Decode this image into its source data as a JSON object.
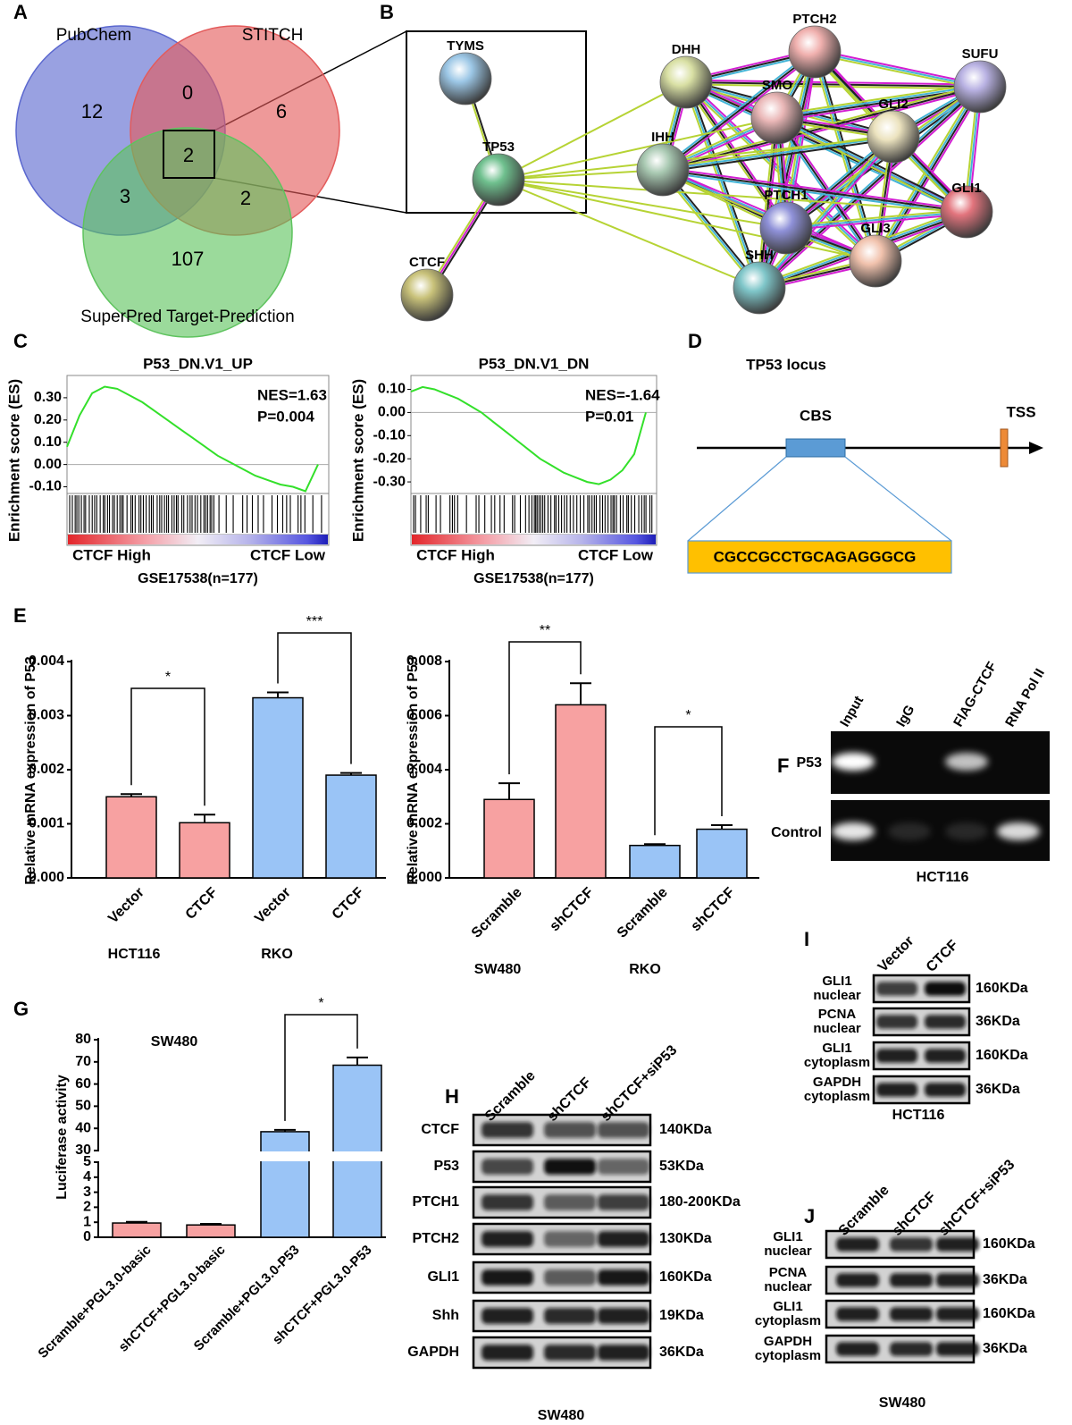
{
  "panel_labels": [
    "A",
    "B",
    "C",
    "D",
    "E",
    "F",
    "G",
    "H",
    "I",
    "J"
  ],
  "venn": {
    "sets": [
      "PubChem",
      "STITCH",
      "SuperPred Target-Prediction"
    ],
    "counts": [
      12,
      0,
      6,
      2,
      3,
      2,
      107
    ]
  },
  "network": {
    "nodes": [
      "TYMS",
      "TP53",
      "CTCF",
      "DHH",
      "PTCH2",
      "SUFU",
      "SMO",
      "GLI2",
      "IHH",
      "GLI1",
      "PTCH1",
      "GLI3",
      "SHH"
    ]
  },
  "gsea": [
    {
      "title": "P53_DN.V1_UP",
      "ylabel": "Enrichment score (ES)",
      "ylim": [
        -0.13,
        0.4
      ],
      "yticks": [
        {
          "value": 0.3,
          "label": "0.30"
        },
        {
          "value": 0.2,
          "label": "0.20"
        },
        {
          "value": 0.1,
          "label": "0.10"
        },
        {
          "value": 0,
          "label": "0.00"
        },
        {
          "value": -0.1,
          "label": "-0.10"
        }
      ],
      "es_curve": [
        0.08,
        0.22,
        0.32,
        0.35,
        0.34,
        0.31,
        0.28,
        0.24,
        0.2,
        0.16,
        0.12,
        0.08,
        0.04,
        0.01,
        -0.02,
        -0.05,
        -0.07,
        -0.09,
        -0.1,
        -0.12,
        0.0
      ],
      "color": "#33e02a",
      "nes": "NES=1.63",
      "p": "P=0.004",
      "x_labels": [
        "CTCF High",
        "CTCF Low"
      ],
      "dataset": "GSE17538(n=177)"
    },
    {
      "title": "P53_DN.V1_DN",
      "ylabel": "Enrichment score (ES)",
      "ylim": [
        -0.35,
        0.16
      ],
      "yticks": [
        {
          "value": 0.1,
          "label": "0.10"
        },
        {
          "value": 0,
          "label": "0.00"
        },
        {
          "value": -0.1,
          "label": "-0.10"
        },
        {
          "value": -0.2,
          "label": "-0.20"
        },
        {
          "value": -0.3,
          "label": "-0.30"
        }
      ],
      "es_curve": [
        0.09,
        0.11,
        0.1,
        0.08,
        0.06,
        0.03,
        0.0,
        -0.04,
        -0.08,
        -0.12,
        -0.16,
        -0.2,
        -0.23,
        -0.26,
        -0.28,
        -0.3,
        -0.31,
        -0.29,
        -0.25,
        -0.18,
        0.0
      ],
      "color": "#33e02a",
      "nes": "NES=-1.64",
      "p": "P=0.01",
      "x_labels": [
        "CTCF High",
        "CTCF Low"
      ],
      "dataset": "GSE17538(n=177)"
    }
  ],
  "locus": {
    "title": "TP53 locus",
    "cbs": "CBS",
    "tss": "TSS",
    "sequence": "CGCCGCCTGCAGAGGGCG"
  },
  "chart_e": [
    {
      "type": "bar",
      "ylabel": "Relative mRNA expression of P53",
      "categories": [
        "Vector",
        "CTCF",
        "Vector",
        "CTCF"
      ],
      "groups": [
        "HCT116",
        "RKO"
      ],
      "values": [
        0.0015,
        0.00102,
        0.00333,
        0.0019
      ],
      "errors": [
        5e-05,
        0.00015,
        0.0001,
        4e-05
      ],
      "colors": [
        "#f7a1a1",
        "#f7a1a1",
        "#9ac4f6",
        "#9ac4f6"
      ],
      "ylim": [
        0,
        0.004
      ],
      "yticks": [
        {
          "value": 0,
          "label": "0.000"
        },
        {
          "value": 0.001,
          "label": "0.001"
        },
        {
          "value": 0.002,
          "label": "0.002"
        },
        {
          "value": 0.003,
          "label": "0.003"
        },
        {
          "value": 0.004,
          "label": "0.004"
        }
      ],
      "significance": [
        "*",
        "***"
      ]
    },
    {
      "type": "bar",
      "ylabel": "Relative mRNA expression of P53",
      "categories": [
        "Scramble",
        "shCTCF",
        "Scramble",
        "shCTCF"
      ],
      "groups": [
        "SW480",
        "RKO"
      ],
      "values": [
        0.0029,
        0.0064,
        0.0012,
        0.0018
      ],
      "errors": [
        0.0006,
        0.0008,
        5e-05,
        0.00015
      ],
      "colors": [
        "#f7a1a1",
        "#f7a1a1",
        "#9ac4f6",
        "#9ac4f6"
      ],
      "ylim": [
        0,
        0.008
      ],
      "yticks": [
        {
          "value": 0,
          "label": "0.000"
        },
        {
          "value": 0.002,
          "label": "0.002"
        },
        {
          "value": 0.004,
          "label": "0.004"
        },
        {
          "value": 0.006,
          "label": "0.006"
        },
        {
          "value": 0.008,
          "label": "0.008"
        }
      ],
      "significance": [
        "**",
        "*"
      ]
    }
  ],
  "gel_f": {
    "lanes": [
      "Input",
      "IgG",
      "FlAG-CTCF",
      "RNA Pol II"
    ],
    "rows": [
      "P53",
      "Control"
    ],
    "cell_line": "HCT116"
  },
  "chart_g": {
    "type": "bar",
    "title": "SW480",
    "ylabel": "Luciferase activity",
    "categories": [
      "Scramble+PGL3.0-basic",
      "shCTCF+PGL3.0-basic",
      "Scramble+PGL3.0-P53",
      "shCTCF+PGL3.0-P53"
    ],
    "values": [
      0.95,
      0.82,
      38.5,
      68.5
    ],
    "errors": [
      0.08,
      0.07,
      0.8,
      3.5
    ],
    "colors": [
      "#f7a1a1",
      "#f7a1a1",
      "#9ac4f6",
      "#9ac4f6"
    ],
    "ylim": [
      0,
      80
    ],
    "ybreak": [
      5,
      30
    ],
    "yticks": [
      0,
      1,
      2,
      3,
      4,
      5,
      30,
      40,
      50,
      60,
      70,
      80
    ],
    "significance": [
      "*"
    ]
  },
  "blot_h": {
    "lanes": [
      "Scramble",
      "shCTCF",
      "shCTCF+siP53"
    ],
    "rows": [
      {
        "name": "CTCF",
        "kda": "140KDa"
      },
      {
        "name": "P53",
        "kda": "53KDa"
      },
      {
        "name": "PTCH1",
        "kda": "180-200KDa"
      },
      {
        "name": "PTCH2",
        "kda": "130KDa"
      },
      {
        "name": "GLI1",
        "kda": "160KDa"
      },
      {
        "name": "Shh",
        "kda": "19KDa"
      },
      {
        "name": "GAPDH",
        "kda": "36KDa"
      }
    ],
    "cell_line": "SW480"
  },
  "blot_i": {
    "lanes": [
      "Vector",
      "CTCF"
    ],
    "rows": [
      {
        "name": "GLI1",
        "compartment": "nuclear",
        "kda": "160KDa"
      },
      {
        "name": "PCNA",
        "compartment": "nuclear",
        "kda": "36KDa"
      },
      {
        "name": "GLI1",
        "compartment": "cytoplasm",
        "kda": "160KDa"
      },
      {
        "name": "GAPDH",
        "compartment": "cytoplasm",
        "kda": "36KDa"
      }
    ],
    "cell_line": "HCT116"
  },
  "blot_j": {
    "lanes": [
      "Scramble",
      "shCTCF",
      "shCTCF+siP53"
    ],
    "rows": [
      {
        "name": "GLI1",
        "compartment": "nuclear",
        "kda": "160KDa"
      },
      {
        "name": "PCNA",
        "compartment": "nuclear",
        "kda": "36KDa"
      },
      {
        "name": "GLI1",
        "compartment": "cytoplasm",
        "kda": "160KDa"
      },
      {
        "name": "GAPDH",
        "compartment": "cytoplasm",
        "kda": "36KDa"
      }
    ],
    "cell_line": "SW480"
  }
}
